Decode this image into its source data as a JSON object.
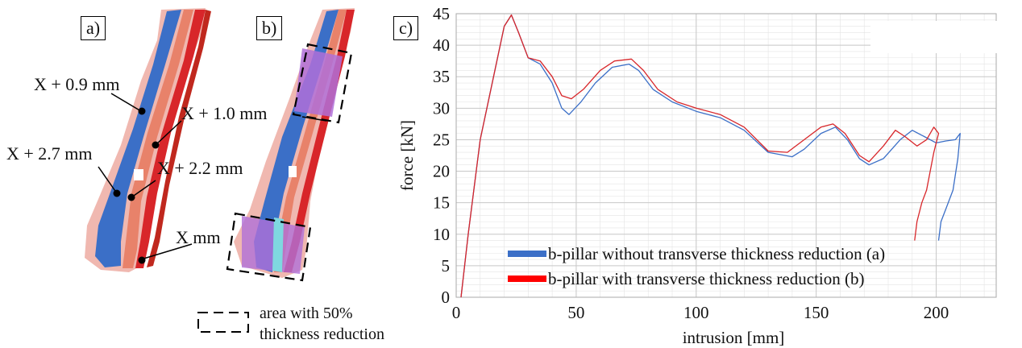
{
  "panels": {
    "a_label": "a)",
    "b_label": "b)",
    "c_label": "c)"
  },
  "annotations": {
    "x09": "X + 0.9 mm",
    "x10": "X + 1.0 mm",
    "x27": "X + 2.7 mm",
    "x22": "X + 2.2 mm",
    "x0": "X mm"
  },
  "area_legend": {
    "line1": "area with 50%",
    "line2": "thickness reduction"
  },
  "colors": {
    "blue": "#3b6fc7",
    "red": "#d8262a",
    "salmon": "#e8826a",
    "pink": "#f0b8b0",
    "purple": "#b070d8",
    "cyan": "#7fd8e0"
  },
  "chart_data": {
    "type": "line",
    "xlabel": "intrusion  [mm]",
    "ylabel": "force [kN]",
    "xlim": [
      0,
      225
    ],
    "ylim": [
      0,
      45
    ],
    "xticks": [
      0,
      50,
      100,
      150,
      200
    ],
    "yticks": [
      0,
      5,
      10,
      15,
      20,
      25,
      30,
      35,
      40,
      45
    ],
    "grid": true,
    "legend_position": "bottom-center",
    "series": [
      {
        "name": "b-pillar  without transverse thickness reduction (a)",
        "color": "#3b6fc7",
        "points": [
          [
            2,
            0
          ],
          [
            5,
            10
          ],
          [
            10,
            25
          ],
          [
            15,
            34
          ],
          [
            20,
            43
          ],
          [
            23,
            44.8
          ],
          [
            26,
            42
          ],
          [
            30,
            38
          ],
          [
            35,
            37
          ],
          [
            40,
            34
          ],
          [
            44,
            30
          ],
          [
            47,
            29
          ],
          [
            52,
            31
          ],
          [
            58,
            34
          ],
          [
            65,
            36.5
          ],
          [
            72,
            37
          ],
          [
            76,
            36
          ],
          [
            82,
            33
          ],
          [
            90,
            31
          ],
          [
            100,
            29.5
          ],
          [
            110,
            28.5
          ],
          [
            120,
            26.5
          ],
          [
            130,
            23
          ],
          [
            140,
            22.3
          ],
          [
            145,
            23.5
          ],
          [
            152,
            26
          ],
          [
            158,
            27
          ],
          [
            163,
            25
          ],
          [
            168,
            22
          ],
          [
            172,
            21
          ],
          [
            178,
            22
          ],
          [
            185,
            25
          ],
          [
            190,
            26.5
          ],
          [
            195,
            25.5
          ],
          [
            200,
            24.5
          ],
          [
            204,
            24.8
          ],
          [
            208,
            25
          ],
          [
            210,
            26
          ],
          [
            209,
            22
          ],
          [
            207,
            17
          ],
          [
            204,
            14
          ],
          [
            202,
            12
          ],
          [
            201,
            9
          ]
        ]
      },
      {
        "name": "b-pillar  with transverse thickness reduction (b)",
        "color": "#d8262a",
        "points": [
          [
            2,
            0
          ],
          [
            5,
            10
          ],
          [
            10,
            25
          ],
          [
            15,
            34
          ],
          [
            20,
            43
          ],
          [
            23,
            44.8
          ],
          [
            26,
            42
          ],
          [
            30,
            38
          ],
          [
            35,
            37.5
          ],
          [
            40,
            35
          ],
          [
            44,
            32
          ],
          [
            48,
            31.5
          ],
          [
            53,
            33
          ],
          [
            60,
            36
          ],
          [
            66,
            37.5
          ],
          [
            73,
            37.8
          ],
          [
            78,
            36
          ],
          [
            84,
            33
          ],
          [
            92,
            31
          ],
          [
            100,
            30
          ],
          [
            110,
            29
          ],
          [
            120,
            27
          ],
          [
            130,
            23.2
          ],
          [
            138,
            23
          ],
          [
            145,
            25
          ],
          [
            152,
            27
          ],
          [
            157,
            27.5
          ],
          [
            162,
            26
          ],
          [
            168,
            22.5
          ],
          [
            172,
            21.5
          ],
          [
            178,
            24
          ],
          [
            183,
            26.5
          ],
          [
            187,
            25.5
          ],
          [
            192,
            24
          ],
          [
            196,
            25
          ],
          [
            199,
            27
          ],
          [
            201,
            26
          ],
          [
            199,
            23
          ],
          [
            196,
            17
          ],
          [
            194,
            15
          ],
          [
            192,
            12
          ],
          [
            191,
            9
          ]
        ]
      }
    ]
  }
}
